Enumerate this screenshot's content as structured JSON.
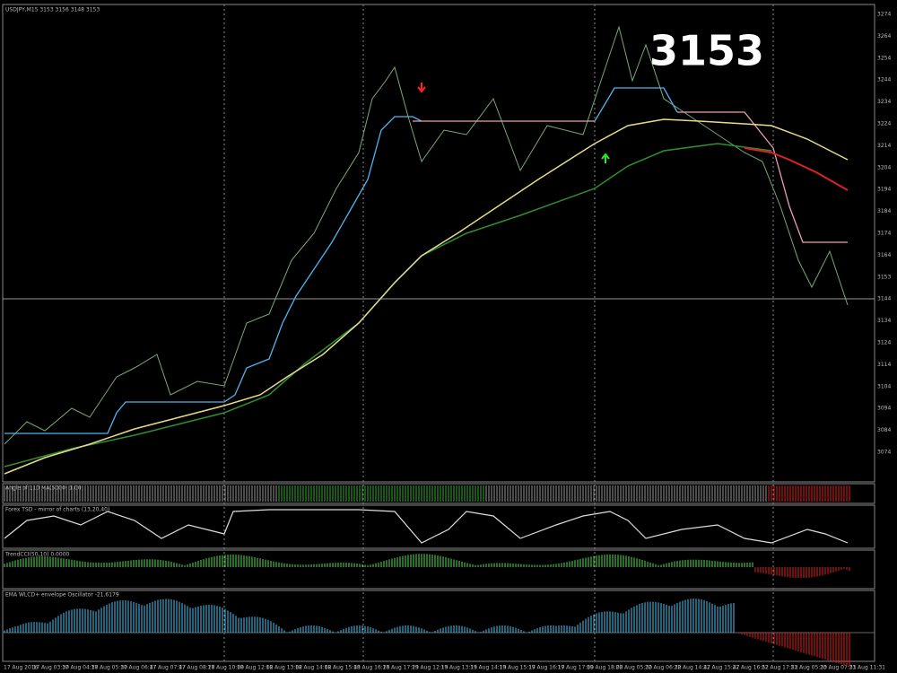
{
  "window": {
    "symbol_label": "USDJPY,M15 3153 3156 3148 3153"
  },
  "annotation": "3153",
  "price_axis": [
    "3274",
    "3264",
    "3254",
    "3244",
    "3234",
    "3224",
    "3214",
    "3204",
    "3194",
    "3184",
    "3174",
    "3164",
    "3153",
    "3144",
    "3134",
    "3124",
    "3114",
    "3104",
    "3094",
    "3084",
    "3074"
  ],
  "panels": [
    "Angle of 110 MA(5000) 1.00",
    "Forex TSD - mirror of charts (13,20,40)",
    "TrendCCI(50,10) 0.0000",
    "EMA WLCD+ envelope Oscillator -21.6179"
  ],
  "time_axis": [
    "17 Aug 2016",
    "17 Aug 03:30",
    "17 Aug 04:30",
    "17 Aug 05:30",
    "17 Aug 06:47",
    "17 Aug 07:47",
    "17 Aug 08:28",
    "17 Aug 10:00",
    "18 Aug 12:02",
    "18 Aug 13:02",
    "18 Aug 14:02",
    "18 Aug 15:43",
    "18 Aug 16:23",
    "18 Aug 17:23",
    "19 Aug 12:13",
    "19 Aug 13:13",
    "19 Aug 14:13",
    "19 Aug 15:17",
    "19 Aug 16:17",
    "19 Aug 17:00",
    "19 Aug 18:00",
    "22 Aug 05:30",
    "22 Aug 06:30",
    "22 Aug 14:47",
    "22 Aug 15:47",
    "22 Aug 16:52",
    "22 Aug 17:52",
    "23 Aug 05:30",
    "23 Aug 07:31",
    "23 Aug 11:31"
  ]
}
